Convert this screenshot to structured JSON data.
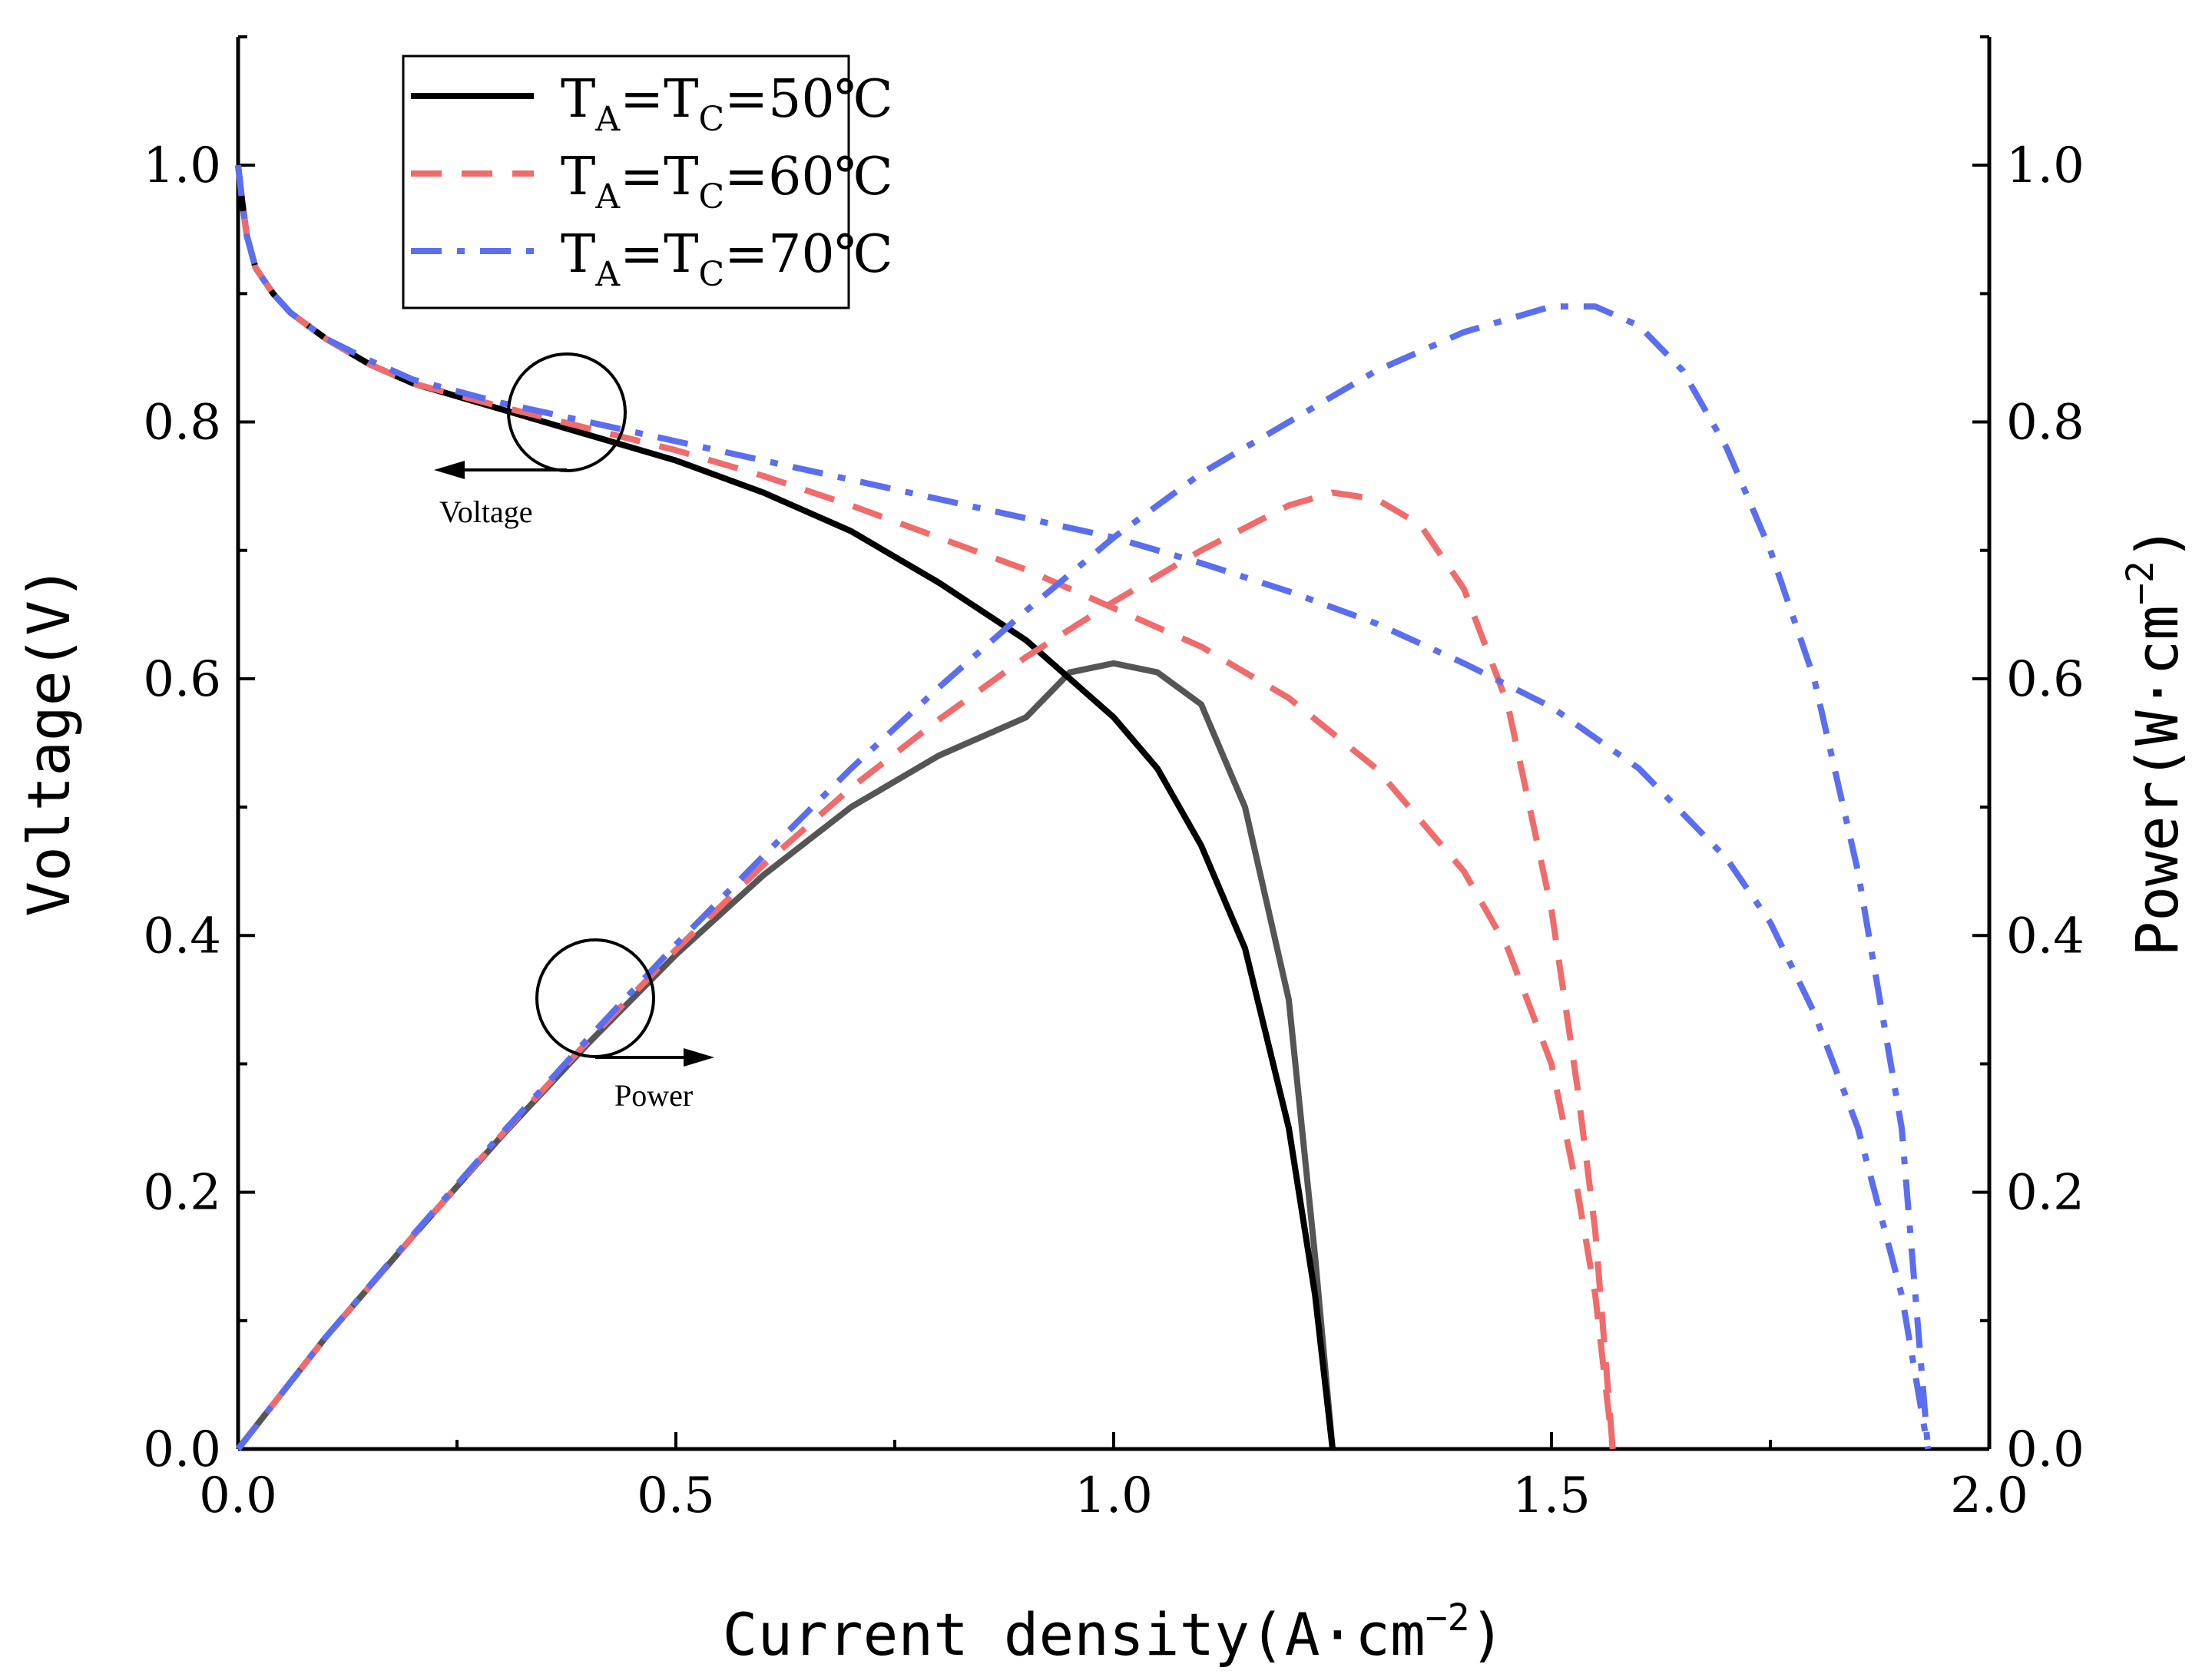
{
  "chart_data": {
    "type": "line",
    "xlabel": "Current density(A·cm",
    "xlabel_sup": "−2",
    "xlabel_close": ")",
    "ylabel_left": "Voltage(V)",
    "ylabel_right": "Power(W·cm",
    "ylabel_right_sup": "−2",
    "ylabel_right_close": ")",
    "xlim": [
      0,
      2.0
    ],
    "ylim_left": [
      0,
      1.1
    ],
    "ylim_right": [
      0,
      1.1
    ],
    "x_ticks": [
      "0.0",
      "0.5",
      "1.0",
      "1.5",
      "2.0"
    ],
    "y_left_ticks": [
      "0.0",
      "0.2",
      "0.4",
      "0.6",
      "0.8",
      "1.0"
    ],
    "y_right_ticks": [
      "0.0",
      "0.2",
      "0.4",
      "0.6",
      "0.8",
      "1.0"
    ],
    "grid": false,
    "legend_position": "top-left",
    "annotations": {
      "voltage_label": "Voltage",
      "power_label": "Power"
    },
    "series": [
      {
        "name": "TA=TC=50℃",
        "legend": {
          "base": "T",
          "sub1": "A",
          "mid": "=T",
          "sub2": "C",
          "tail": "=50℃"
        },
        "color": "#000000",
        "dash": "solid",
        "voltage": {
          "x": [
            0.0,
            0.005,
            0.01,
            0.02,
            0.04,
            0.06,
            0.08,
            0.1,
            0.15,
            0.2,
            0.3,
            0.4,
            0.5,
            0.6,
            0.7,
            0.8,
            0.9,
            1.0,
            1.05,
            1.1,
            1.15,
            1.2,
            1.23,
            1.25
          ],
          "y": [
            1.0,
            0.97,
            0.945,
            0.92,
            0.9,
            0.885,
            0.875,
            0.865,
            0.845,
            0.83,
            0.81,
            0.79,
            0.77,
            0.745,
            0.715,
            0.675,
            0.63,
            0.57,
            0.53,
            0.47,
            0.39,
            0.25,
            0.12,
            0.0
          ]
        },
        "power": {
          "x": [
            0.0,
            0.1,
            0.2,
            0.3,
            0.4,
            0.5,
            0.6,
            0.7,
            0.8,
            0.9,
            0.95,
            1.0,
            1.05,
            1.1,
            1.15,
            1.2,
            1.23,
            1.25
          ],
          "y": [
            0.0,
            0.087,
            0.166,
            0.243,
            0.316,
            0.385,
            0.447,
            0.5,
            0.54,
            0.57,
            0.605,
            0.612,
            0.605,
            0.58,
            0.5,
            0.35,
            0.15,
            0.0
          ]
        }
      },
      {
        "name": "TA=TC=60℃",
        "legend": {
          "base": "T",
          "sub1": "A",
          "mid": "=T",
          "sub2": "C",
          "tail": "=60℃"
        },
        "color": "#f06b6b",
        "dash": "dashed",
        "voltage": {
          "x": [
            0.0,
            0.005,
            0.01,
            0.02,
            0.04,
            0.06,
            0.08,
            0.1,
            0.15,
            0.2,
            0.3,
            0.4,
            0.5,
            0.6,
            0.7,
            0.8,
            0.9,
            1.0,
            1.1,
            1.2,
            1.3,
            1.4,
            1.45,
            1.5,
            1.53,
            1.55,
            1.57
          ],
          "y": [
            1.0,
            0.97,
            0.945,
            0.92,
            0.9,
            0.885,
            0.875,
            0.865,
            0.845,
            0.83,
            0.812,
            0.795,
            0.778,
            0.758,
            0.735,
            0.71,
            0.685,
            0.655,
            0.625,
            0.585,
            0.53,
            0.45,
            0.39,
            0.3,
            0.2,
            0.12,
            0.0
          ]
        },
        "power": {
          "x": [
            0.0,
            0.1,
            0.2,
            0.3,
            0.4,
            0.5,
            0.6,
            0.7,
            0.8,
            0.9,
            1.0,
            1.1,
            1.2,
            1.25,
            1.3,
            1.35,
            1.4,
            1.45,
            1.5,
            1.53,
            1.55,
            1.57
          ],
          "y": [
            0.0,
            0.087,
            0.166,
            0.244,
            0.318,
            0.389,
            0.455,
            0.515,
            0.568,
            0.617,
            0.66,
            0.7,
            0.735,
            0.745,
            0.74,
            0.72,
            0.67,
            0.58,
            0.42,
            0.28,
            0.17,
            0.0
          ]
        }
      },
      {
        "name": "TA=TC=70℃",
        "legend": {
          "base": "T",
          "sub1": "A",
          "mid": "=T",
          "sub2": "C",
          "tail": "=70℃"
        },
        "color": "#5b6ef0",
        "dash": "dashdot",
        "voltage": {
          "x": [
            0.0,
            0.005,
            0.01,
            0.02,
            0.04,
            0.06,
            0.08,
            0.1,
            0.15,
            0.2,
            0.3,
            0.4,
            0.5,
            0.6,
            0.7,
            0.8,
            0.9,
            1.0,
            1.1,
            1.2,
            1.3,
            1.4,
            1.5,
            1.6,
            1.7,
            1.75,
            1.8,
            1.85,
            1.9,
            1.93
          ],
          "y": [
            1.0,
            0.97,
            0.945,
            0.92,
            0.9,
            0.885,
            0.875,
            0.865,
            0.848,
            0.833,
            0.815,
            0.8,
            0.785,
            0.77,
            0.755,
            0.74,
            0.725,
            0.71,
            0.69,
            0.668,
            0.643,
            0.612,
            0.578,
            0.53,
            0.46,
            0.41,
            0.34,
            0.25,
            0.12,
            0.0
          ]
        },
        "power": {
          "x": [
            0.0,
            0.1,
            0.2,
            0.3,
            0.4,
            0.5,
            0.6,
            0.7,
            0.8,
            0.9,
            1.0,
            1.1,
            1.2,
            1.3,
            1.4,
            1.5,
            1.55,
            1.6,
            1.65,
            1.7,
            1.75,
            1.8,
            1.85,
            1.9,
            1.93
          ],
          "y": [
            0.0,
            0.087,
            0.167,
            0.245,
            0.32,
            0.393,
            0.462,
            0.53,
            0.593,
            0.653,
            0.71,
            0.76,
            0.8,
            0.84,
            0.87,
            0.89,
            0.89,
            0.875,
            0.84,
            0.78,
            0.7,
            0.6,
            0.45,
            0.25,
            0.0
          ]
        }
      }
    ]
  }
}
